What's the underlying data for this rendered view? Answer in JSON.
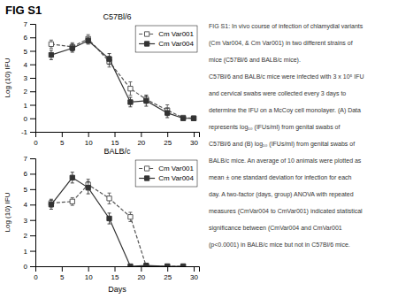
{
  "title": "FIG S1",
  "annotations": [
    "FIG S1: In vivo course of infection of chlamydial variants",
    "(Cm Var004, & Cm Var001) in two different strains of",
    "mice (C57Bl/6 and BALB/c mice).",
    "C57Bl/6 and BALB/c mice were infected with 3 x 10⁵ IFU",
    "and cervical swabs were collected every 3 days to",
    "determine the IFU on a McCoy cell monolayer. (A) Data",
    "represents log₁₀ (IFUs/ml) from genital swabs of",
    "C57Bl/6 and (B) log₁₀ (IFUs/ml) from genital swabs of",
    "BALB/c mice. An average of 10 animals were plotted as",
    "mean ± one standard deviation for infection for each",
    "day. A two-factor (days, group) ANOVA with repeated",
    "measures (CmVar004 to CmVar001) indicated statistical",
    "significance between (CmVar004 and CmVar001",
    "(p<0.0001) in BALB/c mice but not in C57Bl/6 mice."
  ],
  "chart_data": [
    {
      "type": "line",
      "title": "C57Bl/6",
      "ylabel": "Log (10) IFU",
      "x": [
        3,
        7,
        10,
        14,
        18,
        21,
        25,
        28,
        30
      ],
      "series": [
        {
          "name": "Cm Var001",
          "color": "#555555",
          "marker": "square-open",
          "line_style": "dashed",
          "values": [
            5.5,
            5.3,
            5.9,
            4.2,
            2.2,
            1.4,
            0.6,
            0.05,
            0.0
          ],
          "errors": [
            0.3,
            0.3,
            0.3,
            0.4,
            0.5,
            0.3,
            0.4,
            0.1,
            0.0
          ]
        },
        {
          "name": "Cm Var004",
          "color": "#333333",
          "marker": "square",
          "line_style": "solid",
          "values": [
            4.7,
            5.2,
            5.75,
            4.4,
            1.2,
            1.3,
            0.4,
            0.0,
            0.0
          ],
          "errors": [
            0.35,
            0.3,
            0.25,
            0.4,
            0.35,
            0.4,
            0.35,
            0.0,
            0.0
          ]
        }
      ],
      "xlim": [
        0,
        31
      ],
      "xticks": [
        0,
        5,
        10,
        15,
        20,
        25,
        30
      ],
      "ylim": [
        -1,
        7
      ],
      "yticks": [
        -1,
        0,
        1,
        2,
        3,
        4,
        5,
        6,
        7
      ],
      "legend": "upper right"
    },
    {
      "type": "line",
      "title": "BALB/c",
      "xlabel": "Days",
      "ylabel": "Log (10) IFU",
      "x": [
        3,
        7,
        10,
        14,
        18,
        21,
        25,
        28
      ],
      "series": [
        {
          "name": "Cm Var001",
          "color": "#555555",
          "marker": "square-open",
          "line_style": "dashed",
          "values": [
            4.1,
            4.2,
            5.3,
            4.4,
            3.2,
            0.0,
            0.0,
            0.0
          ],
          "errors": [
            0.25,
            0.25,
            0.35,
            0.35,
            0.3,
            0.0,
            0.0,
            0.0
          ]
        },
        {
          "name": "Cm Var004",
          "color": "#333333",
          "marker": "square",
          "line_style": "solid",
          "values": [
            4.0,
            5.75,
            5.1,
            3.1,
            0.0,
            0.05,
            0.0,
            0.0
          ],
          "errors": [
            0.3,
            0.35,
            0.4,
            0.35,
            0.0,
            0.0,
            0.0,
            0.0
          ]
        }
      ],
      "xlim": [
        0,
        31
      ],
      "xticks": [
        0,
        5,
        10,
        15,
        20,
        25,
        30
      ],
      "ylim": [
        0,
        7
      ],
      "yticks": [
        0,
        1,
        2,
        3,
        4,
        5,
        6,
        7
      ],
      "legend": "upper right"
    }
  ]
}
